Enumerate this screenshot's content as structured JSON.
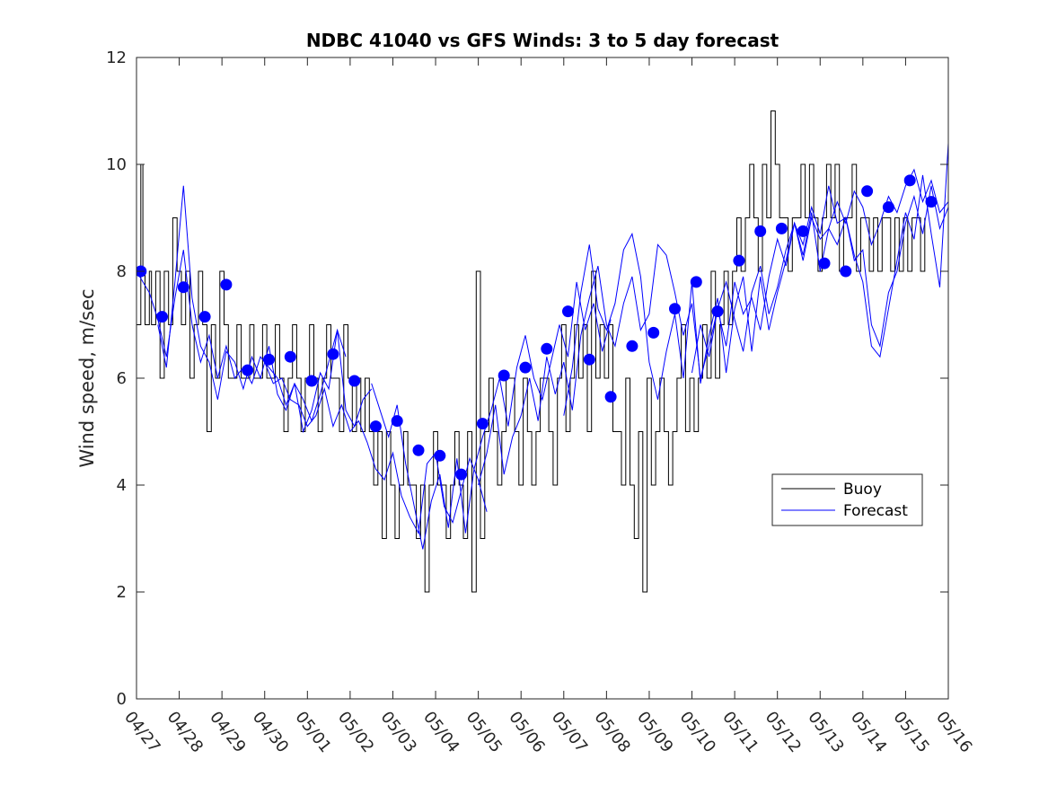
{
  "chart_data": {
    "type": "line",
    "title": "NDBC 41040 vs GFS Winds: 3 to 5 day forecast",
    "xlabel": "",
    "ylabel": "Wind speed, m/sec",
    "ylim": [
      0,
      12
    ],
    "yticks": [
      0,
      2,
      4,
      6,
      8,
      10,
      12
    ],
    "xlim": [
      "2017-04-27",
      "2017-05-16"
    ],
    "xticks": [
      "04/27",
      "04/28",
      "04/29",
      "04/30",
      "05/01",
      "05/02",
      "05/03",
      "05/04",
      "05/05",
      "05/06",
      "05/07",
      "05/08",
      "05/09",
      "05/10",
      "05/11",
      "05/12",
      "05/13",
      "05/14",
      "05/15",
      "05/16"
    ],
    "grid": false,
    "legend": {
      "location": "lower-right",
      "entries": [
        "Buoy",
        "Forecast"
      ]
    },
    "colors": {
      "buoy": "#000000",
      "forecast": "#0000ff",
      "marker": "#0000ff"
    },
    "series": [
      {
        "name": "Buoy",
        "style": "step-line",
        "x": [
          0.0,
          0.1,
          0.15,
          0.2,
          0.3,
          0.35,
          0.45,
          0.55,
          0.65,
          0.75,
          0.85,
          0.95,
          1.05,
          1.15,
          1.25,
          1.35,
          1.45,
          1.55,
          1.65,
          1.75,
          1.85,
          1.95,
          2.05,
          2.15,
          2.25,
          2.35,
          2.45,
          2.55,
          2.65,
          2.75,
          2.85,
          2.95,
          3.05,
          3.15,
          3.25,
          3.35,
          3.45,
          3.55,
          3.65,
          3.75,
          3.85,
          3.95,
          4.05,
          4.15,
          4.25,
          4.35,
          4.45,
          4.55,
          4.65,
          4.75,
          4.85,
          4.95,
          5.05,
          5.15,
          5.25,
          5.35,
          5.45,
          5.55,
          5.65,
          5.75,
          5.85,
          5.95,
          6.05,
          6.15,
          6.25,
          6.35,
          6.45,
          6.55,
          6.65,
          6.75,
          6.85,
          6.95,
          7.05,
          7.15,
          7.25,
          7.35,
          7.45,
          7.55,
          7.65,
          7.75,
          7.85,
          7.95,
          8.05,
          8.15,
          8.25,
          8.35,
          8.45,
          8.55,
          8.65,
          8.75,
          8.85,
          8.95,
          9.05,
          9.15,
          9.25,
          9.35,
          9.45,
          9.55,
          9.65,
          9.75,
          9.85,
          9.95,
          10.05,
          10.15,
          10.25,
          10.35,
          10.45,
          10.55,
          10.65,
          10.75,
          10.85,
          10.95,
          11.05,
          11.15,
          11.25,
          11.35,
          11.45,
          11.55,
          11.65,
          11.75,
          11.85,
          11.95,
          12.05,
          12.15,
          12.25,
          12.35,
          12.45,
          12.55,
          12.65,
          12.75,
          12.85,
          12.95,
          13.05,
          13.15,
          13.25,
          13.35,
          13.45,
          13.55,
          13.65,
          13.75,
          13.85,
          13.95,
          14.05,
          14.15,
          14.25,
          14.35,
          14.45,
          14.55,
          14.65,
          14.75,
          14.85,
          14.95,
          15.05,
          15.15,
          15.25,
          15.35,
          15.45,
          15.55,
          15.65,
          15.75,
          15.85,
          15.95,
          16.05,
          16.15,
          16.25,
          16.35,
          16.45,
          16.55,
          16.65,
          16.75,
          16.85,
          16.95,
          17.05,
          17.15,
          17.25,
          17.35,
          17.45,
          17.55,
          17.65,
          17.75,
          17.85,
          17.95,
          18.05,
          18.15,
          18.25,
          18.35,
          18.45
        ],
        "y": [
          7,
          10,
          8,
          7,
          8,
          7,
          8,
          6,
          8,
          7,
          9,
          8,
          7,
          8,
          6,
          7,
          8,
          7,
          5,
          7,
          6,
          8,
          7,
          6,
          6,
          7,
          6,
          6,
          7,
          6,
          6,
          7,
          6,
          6,
          7,
          6,
          5,
          6,
          7,
          6,
          5,
          6,
          7,
          6,
          5,
          6,
          7,
          6,
          6,
          5,
          7,
          6,
          5,
          6,
          5,
          6,
          5,
          4,
          5,
          3,
          5,
          4,
          3,
          4,
          5,
          4,
          4,
          3,
          4,
          2,
          4,
          5,
          4,
          4,
          3,
          4,
          5,
          4,
          3,
          5,
          2,
          8,
          3,
          5,
          6,
          5,
          4,
          5,
          6,
          6,
          5,
          4,
          6,
          5,
          4,
          5,
          6,
          6,
          5,
          4,
          6,
          7,
          5,
          6,
          7,
          6,
          7,
          5,
          8,
          6,
          7,
          6,
          7,
          5,
          5,
          4,
          6,
          4,
          3,
          5,
          2,
          6,
          4,
          5,
          6,
          5,
          4,
          5,
          6,
          7,
          5,
          6,
          5,
          6,
          7,
          6,
          8,
          6,
          7,
          8,
          7,
          8,
          9,
          8,
          9,
          10,
          9,
          8,
          10,
          9,
          11,
          10,
          9,
          9,
          8,
          9,
          9,
          10,
          9,
          10,
          9,
          8,
          9,
          10,
          9,
          10,
          8,
          9,
          9,
          10,
          8,
          9,
          9,
          8,
          9,
          8,
          9,
          9,
          8,
          9,
          8,
          9,
          8,
          9,
          9,
          8,
          9
        ]
      },
      {
        "name": "Forecast",
        "style": "line",
        "runs": [
          {
            "x": [
              0.0,
              0.3,
              0.5,
              0.7,
              0.9,
              1.1,
              1.3,
              1.5,
              1.7,
              1.9,
              2.1,
              2.3,
              2.5,
              2.7,
              2.9,
              3.1,
              3.3,
              3.5,
              3.7,
              3.9,
              4.1,
              4.3,
              4.5,
              4.7,
              4.9
            ],
            "y": [
              8.0,
              7.6,
              7.1,
              6.4,
              7.5,
              8.4,
              7.0,
              6.3,
              6.8,
              6.0,
              6.6,
              6.0,
              6.2,
              5.9,
              6.4,
              6.2,
              6.0,
              5.5,
              5.9,
              5.6,
              5.2,
              5.7,
              6.3,
              6.9,
              6.4
            ]
          },
          {
            "x": [
              0.5,
              0.7,
              0.9,
              1.1,
              1.3,
              1.5,
              1.7,
              1.9,
              2.1,
              2.3,
              2.5,
              2.7,
              2.9,
              3.1,
              3.3,
              3.5,
              3.7,
              3.9,
              4.1,
              4.3,
              4.5,
              4.7,
              4.9,
              5.1,
              5.3,
              5.5
            ],
            "y": [
              7.0,
              6.2,
              7.8,
              9.6,
              7.5,
              6.6,
              6.3,
              5.6,
              6.5,
              6.3,
              5.8,
              6.4,
              6.0,
              6.6,
              5.7,
              5.4,
              5.9,
              5.0,
              5.4,
              6.1,
              5.8,
              6.9,
              5.4,
              5.1,
              5.6,
              5.8
            ]
          },
          {
            "x": [
              3.0,
              3.2,
              3.4,
              3.6,
              3.8,
              4.0,
              4.2,
              4.4,
              4.6,
              4.8,
              5.0,
              5.2,
              5.4,
              5.6,
              5.8,
              6.0,
              6.2,
              6.4,
              6.6,
              6.8,
              7.0,
              7.2,
              7.4,
              7.6,
              7.8,
              8.0,
              8.2
            ],
            "y": [
              6.3,
              5.9,
              6.0,
              5.6,
              5.5,
              5.1,
              5.3,
              5.8,
              5.1,
              5.5,
              5.0,
              5.2,
              4.8,
              4.3,
              4.1,
              4.6,
              3.8,
              3.4,
              3.1,
              4.4,
              4.6,
              3.6,
              3.3,
              3.9,
              4.5,
              4.1,
              3.5
            ]
          },
          {
            "x": [
              5.5,
              5.7,
              5.9,
              6.1,
              6.3,
              6.5,
              6.7,
              6.9,
              7.1,
              7.3,
              7.5,
              7.7,
              7.9,
              8.1,
              8.3,
              8.5,
              8.7,
              8.9,
              9.1,
              9.3,
              9.5,
              9.7,
              9.9,
              10.1,
              10.3,
              10.5,
              10.7,
              10.9,
              11.1
            ],
            "y": [
              5.9,
              5.4,
              4.9,
              5.5,
              4.4,
              3.6,
              2.8,
              3.7,
              4.2,
              3.2,
              4.5,
              3.1,
              4.3,
              4.9,
              5.4,
              6.0,
              5.1,
              6.2,
              6.8,
              6.0,
              5.6,
              6.3,
              7.0,
              6.4,
              7.8,
              6.9,
              7.4,
              6.5,
              7.1
            ]
          },
          {
            "x": [
              8.0,
              8.2,
              8.4,
              8.6,
              8.8,
              9.0,
              9.2,
              9.4,
              9.6,
              9.8,
              10.0,
              10.2,
              10.4,
              10.6,
              10.8,
              11.0,
              11.2,
              11.4,
              11.6,
              11.8,
              12.0,
              12.2,
              12.4,
              12.6,
              12.8,
              13.0,
              13.2,
              13.4,
              13.6,
              13.8,
              14.0,
              14.2,
              14.4,
              14.6,
              14.8,
              15.0,
              15.2,
              15.4,
              15.6,
              15.8,
              16.0,
              16.2,
              16.4,
              16.6,
              16.8,
              17.0,
              17.2,
              17.4,
              17.6,
              17.8,
              18.0,
              18.2,
              18.4,
              18.6,
              18.8,
              19.0
            ],
            "y": [
              4.0,
              4.6,
              5.5,
              4.2,
              4.9,
              5.3,
              6.0,
              5.2,
              6.4,
              5.7,
              6.3,
              5.4,
              6.8,
              7.5,
              8.1,
              7.0,
              6.6,
              7.4,
              7.9,
              6.9,
              7.2,
              8.5,
              8.3,
              7.6,
              6.8,
              7.4,
              6.0,
              6.6,
              7.3,
              7.8,
              7.1,
              6.5,
              7.6,
              8.1,
              7.2,
              7.7,
              8.4,
              8.9,
              8.2,
              9.0,
              8.6,
              8.8,
              9.3,
              8.9,
              9.5,
              9.2,
              8.5,
              8.9,
              9.4,
              9.1,
              9.6,
              9.9,
              9.3,
              9.7,
              9.1,
              9.3
            ]
          },
          {
            "x": [
              10.0,
              10.2,
              10.4,
              10.6,
              10.8,
              11.0,
              11.2,
              11.4,
              11.6,
              11.8,
              12.0,
              12.2,
              12.4,
              12.6,
              12.8,
              13.0,
              13.2,
              13.4,
              13.6,
              13.8,
              14.0,
              14.2,
              14.4,
              14.6,
              14.8,
              15.0,
              15.2,
              15.4,
              15.6,
              15.8,
              16.0,
              16.2,
              16.4,
              16.6,
              16.8,
              17.0,
              17.2,
              17.4,
              17.6,
              17.8,
              18.0,
              18.2,
              18.4,
              18.6,
              18.8,
              19.0
            ],
            "y": [
              5.3,
              6.2,
              7.6,
              8.5,
              7.3,
              6.9,
              7.4,
              8.4,
              8.7,
              7.9,
              6.3,
              5.6,
              6.5,
              7.2,
              6.0,
              7.8,
              5.9,
              6.8,
              7.5,
              6.1,
              7.3,
              7.9,
              6.5,
              7.9,
              6.9,
              7.6,
              8.2,
              8.9,
              8.3,
              9.1,
              8.0,
              8.8,
              8.5,
              9.0,
              8.2,
              8.4,
              7.0,
              6.6,
              7.6,
              8.0,
              8.9,
              9.4,
              8.7,
              9.6,
              8.8,
              9.2
            ]
          },
          {
            "x": [
              13.0,
              13.2,
              13.4,
              13.6,
              13.8,
              14.0,
              14.2,
              14.4,
              14.6,
              14.8,
              15.0,
              15.2,
              15.4,
              15.6,
              15.8,
              16.0,
              16.2,
              16.4,
              16.6,
              16.8,
              17.0,
              17.2,
              17.4,
              17.6,
              17.8,
              18.0,
              18.2,
              18.4,
              18.6,
              18.8,
              19.0
            ],
            "y": [
              6.1,
              7.0,
              6.4,
              7.3,
              6.6,
              7.8,
              7.2,
              7.5,
              6.9,
              7.9,
              8.6,
              8.1,
              8.9,
              8.5,
              9.2,
              8.7,
              9.6,
              8.9,
              9.0,
              8.3,
              7.8,
              6.6,
              6.4,
              7.3,
              8.2,
              9.1,
              8.6,
              9.8,
              8.7,
              7.7,
              10.4
            ]
          }
        ]
      },
      {
        "name": "",
        "style": "markers",
        "x": [
          0.1,
          0.6,
          1.1,
          1.6,
          2.1,
          2.6,
          3.1,
          3.6,
          4.1,
          4.6,
          5.1,
          5.6,
          6.1,
          6.6,
          7.1,
          7.6,
          8.1,
          8.6,
          9.1,
          9.6,
          10.1,
          10.6,
          11.1,
          11.6,
          12.1,
          12.6,
          13.1,
          13.6,
          14.1,
          14.6,
          15.1,
          15.6,
          16.1,
          16.6,
          17.1,
          17.6,
          18.1,
          18.6
        ],
        "y": [
          8.0,
          7.15,
          7.7,
          7.15,
          7.75,
          6.15,
          6.35,
          6.4,
          5.95,
          6.45,
          5.95,
          5.1,
          5.2,
          4.65,
          4.55,
          4.2,
          5.15,
          6.05,
          6.2,
          6.55,
          7.25,
          6.35,
          5.65,
          6.6,
          6.85,
          7.3,
          7.8,
          7.25,
          8.2,
          8.75,
          8.8,
          8.75,
          8.15,
          8.0,
          9.5,
          9.2,
          9.7,
          9.3
        ]
      }
    ]
  }
}
